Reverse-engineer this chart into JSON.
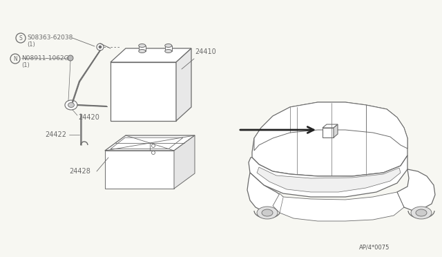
{
  "bg_color": "#f7f7f2",
  "line_color": "#6a6a6a",
  "part_numbers": {
    "S_label": "S08363-62038",
    "S_sub": "(1)",
    "N_label": "N08911-1062G",
    "N_sub": "(1)",
    "battery": "24410",
    "clamp": "24420",
    "rod": "24422",
    "tray": "24428"
  },
  "footnote": "AP/4*0075"
}
